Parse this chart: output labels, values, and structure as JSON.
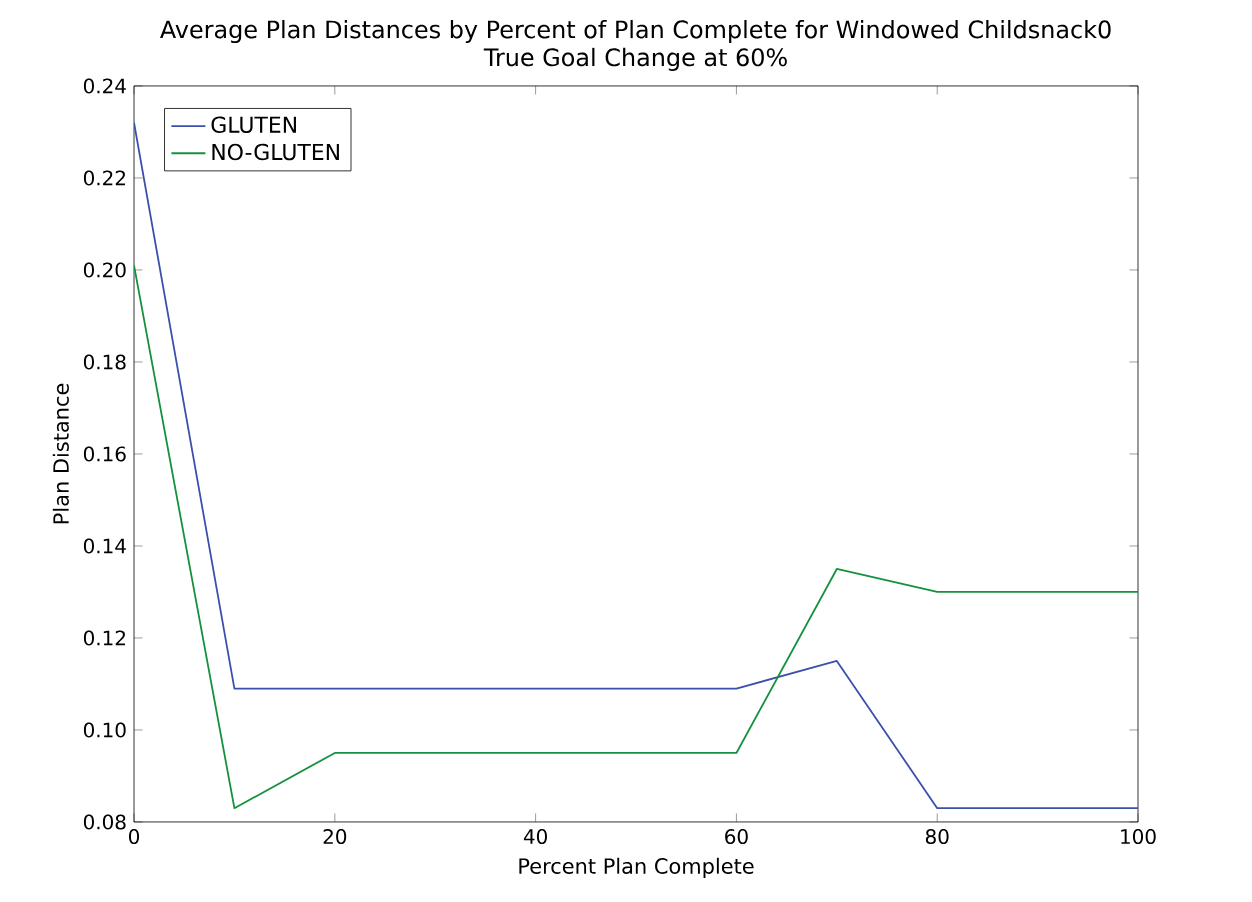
{
  "chart_data": {
    "type": "line",
    "title": "Average Plan Distances by Percent of Plan Complete for Windowed Childsnack0",
    "subtitle": "True Goal Change at 60%",
    "xlabel": "Percent Plan Complete",
    "ylabel": "Plan Distance",
    "x": [
      0,
      10,
      20,
      30,
      40,
      50,
      60,
      70,
      80,
      90,
      100
    ],
    "series": [
      {
        "name": "GLUTEN",
        "color": "#3b4fad",
        "values": [
          0.232,
          0.109,
          0.109,
          0.109,
          0.109,
          0.109,
          0.109,
          0.115,
          0.083,
          0.083,
          0.083
        ]
      },
      {
        "name": "NO-GLUTEN",
        "color": "#15913d",
        "values": [
          0.201,
          0.083,
          0.095,
          0.095,
          0.095,
          0.095,
          0.095,
          0.135,
          0.13,
          0.13,
          0.13
        ]
      }
    ],
    "xlim": [
      0,
      100
    ],
    "ylim": [
      0.08,
      0.24
    ],
    "xticks": [
      0,
      20,
      40,
      60,
      80,
      100
    ],
    "yticks": [
      0.08,
      {
        "value": 0.1,
        "label": "0.10"
      },
      0.12,
      0.14,
      0.16,
      0.18,
      {
        "value": 0.2,
        "label": "0.20"
      },
      0.22,
      0.24
    ],
    "legend": "top left",
    "grid": false,
    "marker": "none",
    "line_style": "solid"
  }
}
